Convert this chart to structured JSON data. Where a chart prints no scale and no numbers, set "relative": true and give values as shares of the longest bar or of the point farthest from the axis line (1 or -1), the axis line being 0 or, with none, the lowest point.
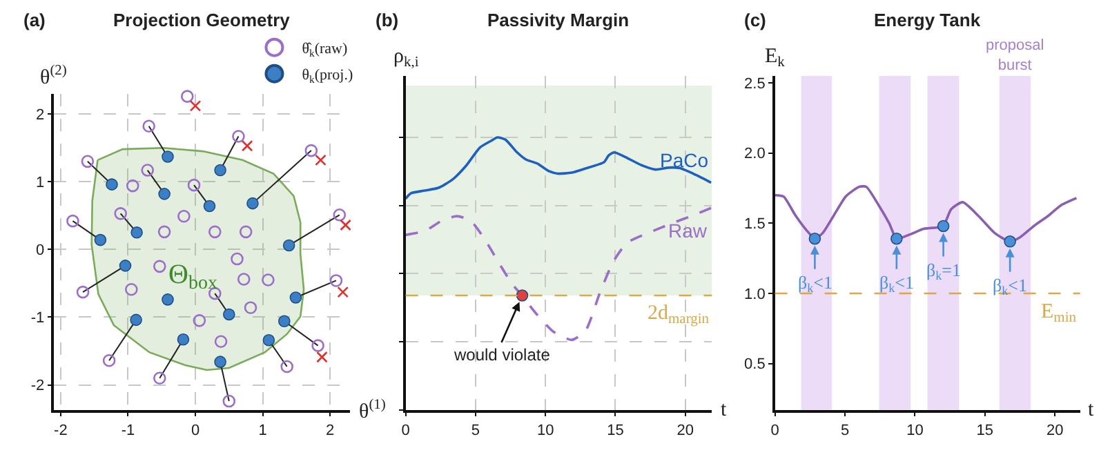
{
  "chart_data": [
    {
      "type": "scatter",
      "title": "Projection Geometry",
      "xlabel": "θ$^{(1)}$",
      "ylabel": "θ$^{(2)}$",
      "xlim": [
        -2.1,
        2.3
      ],
      "ylim": [
        -2.37,
        2.3
      ],
      "xticks": [
        -2,
        -1,
        0,
        1,
        2
      ],
      "yticks": [
        -2,
        -1,
        0,
        1,
        2
      ],
      "grid": true,
      "legend": "top right",
      "annotations": [
        "(a)",
        "Θ$_{box}$"
      ],
      "series": [
        {
          "type": "area",
          "color": "#7aab5a",
          "x": [
            -1.45,
            -1.08,
            -0.48,
            0.11,
            0.7,
            1.16,
            1.46,
            1.56,
            1.56,
            1.61,
            1.56,
            1.36,
            1.03,
            0.5,
            0.17,
            -0.15,
            -0.68,
            -1.21,
            -1.44,
            -1.54,
            -1.53,
            -1.45
          ],
          "values": [
            1.32,
            1.48,
            1.5,
            1.45,
            1.32,
            1.12,
            0.79,
            0.4,
            -0.07,
            -0.59,
            -0.99,
            -1.25,
            -1.52,
            -1.75,
            -1.78,
            -1.71,
            -1.52,
            -1.12,
            -0.66,
            0.07,
            0.72,
            1.32
          ]
        },
        {
          "type": "line",
          "color": "#222222",
          "marker": "triangle",
          "x": [
            -0.69,
            -0.41,
            null,
            0.64,
            0.37,
            null,
            1.72,
            0.85,
            null,
            -1.6,
            -1.24,
            null,
            -0.71,
            -0.46,
            null,
            -0.02,
            0.21,
            null,
            -1.11,
            -0.87,
            null,
            -1.82,
            -1.41,
            null,
            2.14,
            1.39,
            null,
            -1.67,
            -1.04,
            null,
            0.29,
            0.5,
            null,
            2.09,
            1.49,
            null,
            -1.28,
            -0.88,
            null,
            1.82,
            1.32,
            null,
            -0.53,
            -0.18,
            null,
            1.36,
            1.09,
            null,
            0.5,
            0.37
          ],
          "values": [
            1.82,
            1.37,
            null,
            1.67,
            1.17,
            null,
            1.46,
            0.68,
            null,
            1.3,
            0.96,
            null,
            1.17,
            0.82,
            null,
            0.95,
            0.64,
            null,
            0.53,
            0.25,
            null,
            0.42,
            0.14,
            null,
            0.51,
            0.06,
            null,
            -0.63,
            -0.24,
            null,
            -0.65,
            -0.96,
            null,
            -0.46,
            -0.71,
            null,
            -1.64,
            -1.04,
            null,
            -1.42,
            -1.06,
            null,
            -1.9,
            -1.33,
            null,
            -1.73,
            -1.34,
            null,
            -2.24,
            -1.66
          ]
        },
        {
          "type": "scatter",
          "name": "θ̂$_{k}$(raw)",
          "color": "#9b6fc9",
          "marker": "circle-open",
          "x": [
            -0.12,
            -0.69,
            0.64,
            1.72,
            -1.6,
            -0.71,
            -0.93,
            -0.02,
            -1.11,
            -0.17,
            2.14,
            -1.82,
            -0.46,
            0.29,
            0.75,
            0.62,
            -0.53,
            0.72,
            1.08,
            2.09,
            -1.67,
            -0.95,
            0.29,
            0.82,
            0.06,
            1.82,
            0.38,
            -1.28,
            1.36,
            -0.53,
            0.5
          ],
          "values": [
            2.26,
            1.82,
            1.67,
            1.46,
            1.3,
            1.17,
            0.94,
            0.95,
            0.53,
            0.49,
            0.51,
            0.42,
            0.26,
            0.26,
            0.26,
            -0.14,
            -0.25,
            -0.44,
            -0.45,
            -0.46,
            -0.63,
            -0.59,
            -0.65,
            -0.86,
            -1.05,
            -1.42,
            -1.36,
            -1.64,
            -1.73,
            -1.9,
            -2.24
          ]
        },
        {
          "type": "scatter",
          "name": "θ$_{k}$(proj.)",
          "color": "#3d7fc4",
          "marker": "circle",
          "x": [
            -0.41,
            0.37,
            -1.24,
            -0.46,
            0.21,
            0.85,
            -0.87,
            -1.41,
            1.39,
            -1.04,
            -0.41,
            1.49,
            0.5,
            -0.88,
            1.32,
            -0.18,
            1.09,
            0.37
          ],
          "values": [
            1.37,
            1.17,
            0.96,
            0.82,
            0.64,
            0.68,
            0.25,
            0.14,
            0.06,
            -0.24,
            -0.74,
            -0.71,
            -0.96,
            -1.04,
            -1.06,
            -1.33,
            -1.34,
            -1.66
          ]
        },
        {
          "type": "scatter",
          "color": "#e03030",
          "marker": "cross",
          "x": [
            0,
            0.77,
            1.86,
            2.23,
            2.19,
            1.88
          ],
          "values": [
            2.12,
            1.53,
            1.32,
            0.36,
            -0.63,
            -1.59
          ]
        }
      ]
    },
    {
      "type": "line",
      "title": "Passivity Margin",
      "xlabel": "t",
      "ylabel": "ρ$_{k,i}$",
      "relative": true,
      "xlim": [
        0,
        21.9
      ],
      "xticks": [
        0,
        5,
        10,
        15,
        20
      ],
      "grid": true,
      "annotations": [
        "(b)",
        {
          "text": "would violate",
          "x": 8.34,
          "y": 0.42
        }
      ],
      "ref_lines": [
        {
          "axis": "y",
          "value": 0.42,
          "label": "2d$_{margin}$",
          "color": "#d9a84a",
          "line_style": "dashed"
        }
      ],
      "bands": [
        {
          "axis": "y",
          "from": 0.42,
          "to": 1.19,
          "color": "#e8f2e4"
        }
      ],
      "series": [
        {
          "name": "PaCo",
          "color": "#1f5fbf",
          "line_style": "solid",
          "x": [
            0,
            0.39,
            1.38,
            2.36,
            3.35,
            4.33,
            5.32,
            6.14,
            6.57,
            7.13,
            7.95,
            8.6,
            9.42,
            10.25,
            10.9,
            11.89,
            12.87,
            14.19,
            14.52,
            14.91,
            15.67,
            16.82,
            17.87,
            18.78,
            19.61,
            20.76,
            21.84
          ],
          "values": [
            0.775,
            0.795,
            0.805,
            0.815,
            0.845,
            0.896,
            0.963,
            0.988,
            1.0,
            0.992,
            0.946,
            0.919,
            0.904,
            0.876,
            0.867,
            0.871,
            0.886,
            0.909,
            0.934,
            0.945,
            0.929,
            0.899,
            0.882,
            0.889,
            0.887,
            0.862,
            0.834
          ]
        },
        {
          "name": "Raw",
          "color": "#9b6fc9",
          "line_style": "dashed",
          "x": [
            0,
            1.38,
            2.69,
            3.68,
            4.66,
            5.65,
            6.63,
            7.62,
            8.28,
            9.26,
            10.57,
            11.89,
            12.87,
            13.86,
            14.84,
            15.83,
            17.47,
            19.11,
            20.76,
            21.84
          ],
          "values": [
            0.642,
            0.657,
            0.697,
            0.711,
            0.694,
            0.627,
            0.543,
            0.462,
            0.422,
            0.358,
            0.287,
            0.257,
            0.291,
            0.425,
            0.543,
            0.613,
            0.652,
            0.686,
            0.718,
            0.741
          ]
        },
        {
          "type": "scatter",
          "color": "#e04040",
          "marker": "circle",
          "x": [
            8.34
          ],
          "values": [
            0.42
          ]
        }
      ]
    },
    {
      "type": "line",
      "title": "Energy Tank",
      "xlabel": "t",
      "ylabel": "E$_{k}$",
      "xlim": [
        0,
        21.8
      ],
      "xticks": [
        0,
        5,
        10,
        15,
        20
      ],
      "ylim": [
        0.17,
        2.55
      ],
      "yticks": [
        {
          "value": 0.5,
          "label": "0.5"
        },
        {
          "value": 1,
          "label": "1.0"
        },
        {
          "value": 1.5,
          "label": "1.5"
        },
        {
          "value": 2,
          "label": "2.0"
        },
        {
          "value": 2.5,
          "label": "2.5"
        }
      ],
      "annotations": [
        "(c)",
        {
          "text": "β$_{k}$<1",
          "x": 2.85,
          "y": 1.39
        },
        {
          "text": "β$_{k}$<1",
          "x": 8.69,
          "y": 1.39
        },
        {
          "text": "β$_{k}$=1",
          "x": 12.03,
          "y": 1.48
        },
        {
          "text": "β$_{k}$<1",
          "x": 16.79,
          "y": 1.37
        }
      ],
      "ref_lines": [
        {
          "axis": "y",
          "value": 1.0,
          "label": "E$_{min}$",
          "color": "#d9a84a",
          "line_style": "dashed"
        }
      ],
      "bands": [
        {
          "axis": "x",
          "from": 1.87,
          "to": 4.07,
          "color": "#eddcf7"
        },
        {
          "axis": "x",
          "from": 7.44,
          "to": 9.7,
          "color": "#eddcf7"
        },
        {
          "axis": "x",
          "from": 10.89,
          "to": 13.15,
          "color": "#eddcf7"
        },
        {
          "axis": "x",
          "from": 16.03,
          "to": 18.26,
          "color": "#eddcf7",
          "label": "proposal\nburst"
        }
      ],
      "series": [
        {
          "color": "#8a5fb0",
          "line_style": "solid",
          "x": [
            0,
            0.62,
            1.44,
            2.26,
            2.85,
            3.41,
            4.23,
            5.05,
            5.54,
            6.03,
            6.52,
            7.34,
            8.16,
            8.69,
            9.64,
            10.62,
            11.61,
            12.03,
            12.59,
            13.41,
            14.56,
            15.7,
            16.79,
            17.51,
            18.49,
            19.48,
            20.46,
            21.54
          ],
          "values": [
            1.7,
            1.69,
            1.56,
            1.45,
            1.39,
            1.43,
            1.56,
            1.69,
            1.73,
            1.76,
            1.76,
            1.64,
            1.5,
            1.39,
            1.42,
            1.46,
            1.47,
            1.48,
            1.6,
            1.65,
            1.55,
            1.43,
            1.37,
            1.4,
            1.48,
            1.55,
            1.63,
            1.68
          ]
        },
        {
          "type": "scatter",
          "color": "#4a90d9",
          "marker": "circle",
          "x": [
            2.85,
            8.69,
            12.03,
            16.79
          ],
          "values": [
            1.39,
            1.39,
            1.48,
            1.37
          ]
        }
      ]
    }
  ]
}
